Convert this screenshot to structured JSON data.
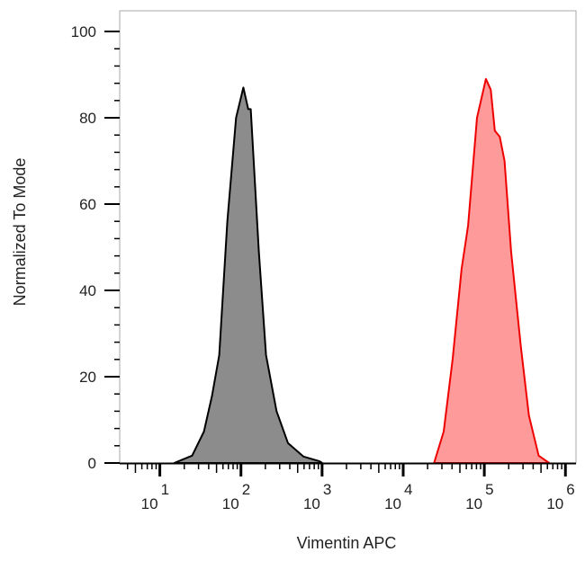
{
  "chart_data": {
    "type": "area",
    "title": "",
    "xlabel": "Vimentin APC",
    "ylabel": "Normalized To Mode",
    "xscale": "log",
    "xlim": [
      3.2,
      1350000
    ],
    "ylim": [
      0,
      104.8
    ],
    "grid": false,
    "legend": "none",
    "yticks": [
      "0",
      "20",
      "40",
      "60",
      "80",
      "100"
    ],
    "xticks": [
      {
        "base": "10",
        "exp": "1"
      },
      {
        "base": "10",
        "exp": "2"
      },
      {
        "base": "10",
        "exp": "3"
      },
      {
        "base": "10",
        "exp": "4"
      },
      {
        "base": "10",
        "exp": "5"
      },
      {
        "base": "10",
        "exp": "6"
      }
    ],
    "series": [
      {
        "fill": "#8c8c8c",
        "stroke": "#000000",
        "x": [
          15,
          25,
          35,
          44,
          54,
          68,
          87,
          107,
          123,
          132,
          166,
          204,
          275,
          380,
          589,
          933,
          1000
        ],
        "y": [
          0,
          1.7,
          7.3,
          15.6,
          25,
          56,
          80,
          87,
          82,
          82,
          49,
          25,
          12,
          4.6,
          1.5,
          0.4,
          0
        ]
      },
      {
        "fill": "#ff9a9a",
        "stroke": "#ee0000",
        "x": [
          24000,
          31600,
          40700,
          52500,
          63100,
          81300,
          104700,
          120200,
          134900,
          154900,
          177800,
          213800,
          281800,
          354800,
          467700,
          631000
        ],
        "y": [
          0,
          7.3,
          24,
          45,
          55,
          80,
          89,
          86.5,
          77,
          75.6,
          70,
          49,
          27,
          11,
          1.7,
          0
        ]
      }
    ]
  }
}
